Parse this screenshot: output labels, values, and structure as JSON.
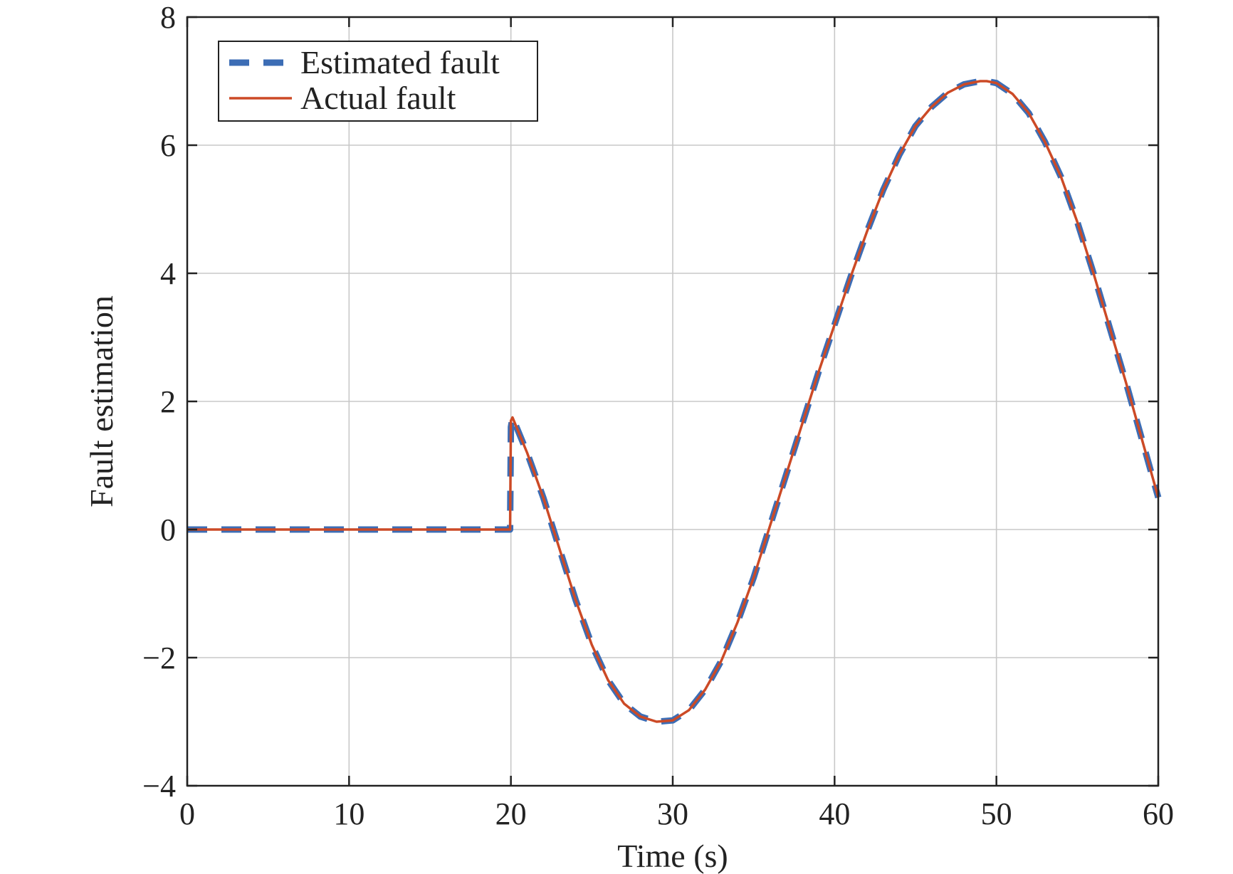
{
  "colors": {
    "estimated": "#3c6db5",
    "actual": "#cc4a26",
    "grid": "#c8c8c8",
    "axis": "#222222"
  },
  "chart_data": {
    "type": "line",
    "title": "",
    "xlabel": "Time (s)",
    "ylabel": "Fault estimation",
    "xlim": [
      0,
      60
    ],
    "ylim": [
      -4,
      8
    ],
    "xticks": [
      0,
      10,
      20,
      30,
      40,
      50,
      60
    ],
    "yticks": [
      -4,
      -2,
      0,
      2,
      4,
      6,
      8
    ],
    "xtick_labels": [
      "0",
      "10",
      "20",
      "30",
      "40",
      "50",
      "60"
    ],
    "ytick_labels": [
      "−4",
      "−2",
      "0",
      "2",
      "4",
      "6",
      "8"
    ],
    "grid": true,
    "legend_position": "top-left",
    "series": [
      {
        "name": "Estimated fault",
        "style": "dashed",
        "x": [
          0,
          5,
          10,
          15,
          19.95,
          20,
          20.1,
          21,
          22,
          23,
          24,
          25,
          26,
          27,
          28,
          29,
          30,
          31,
          32,
          33,
          34,
          35,
          36,
          37,
          38,
          39,
          40,
          41,
          42,
          43,
          44,
          45,
          46,
          47,
          48,
          49,
          49.4,
          50,
          51,
          52,
          53,
          54,
          55,
          56,
          57,
          58,
          59,
          60
        ],
        "y": [
          0,
          0,
          0,
          0,
          0,
          1.6,
          1.75,
          1.2,
          0.5,
          -0.3,
          -1.1,
          -1.8,
          -2.35,
          -2.72,
          -2.92,
          -3.0,
          -2.98,
          -2.82,
          -2.5,
          -2.05,
          -1.45,
          -0.75,
          0.05,
          0.85,
          1.65,
          2.45,
          3.2,
          3.95,
          4.65,
          5.3,
          5.85,
          6.3,
          6.6,
          6.82,
          6.95,
          7.0,
          7.0,
          6.97,
          6.8,
          6.5,
          6.05,
          5.5,
          4.8,
          4.0,
          3.15,
          2.3,
          1.4,
          0.5
        ]
      },
      {
        "name": "Actual fault",
        "style": "solid",
        "x": [
          0,
          5,
          10,
          15,
          19.95,
          20,
          20.1,
          21,
          22,
          23,
          24,
          25,
          26,
          27,
          28,
          29,
          30,
          31,
          32,
          33,
          34,
          35,
          36,
          37,
          38,
          39,
          40,
          41,
          42,
          43,
          44,
          45,
          46,
          47,
          48,
          49,
          49.4,
          50,
          51,
          52,
          53,
          54,
          55,
          56,
          57,
          58,
          59,
          60
        ],
        "y": [
          0,
          0,
          0,
          0,
          0,
          1.7,
          1.75,
          1.2,
          0.5,
          -0.3,
          -1.1,
          -1.8,
          -2.35,
          -2.72,
          -2.92,
          -3.0,
          -2.98,
          -2.82,
          -2.5,
          -2.05,
          -1.45,
          -0.75,
          0.05,
          0.85,
          1.65,
          2.45,
          3.2,
          3.95,
          4.65,
          5.3,
          5.85,
          6.3,
          6.6,
          6.82,
          6.95,
          7.0,
          7.0,
          6.97,
          6.8,
          6.5,
          6.05,
          5.5,
          4.8,
          4.0,
          3.15,
          2.3,
          1.4,
          0.5
        ]
      }
    ]
  }
}
